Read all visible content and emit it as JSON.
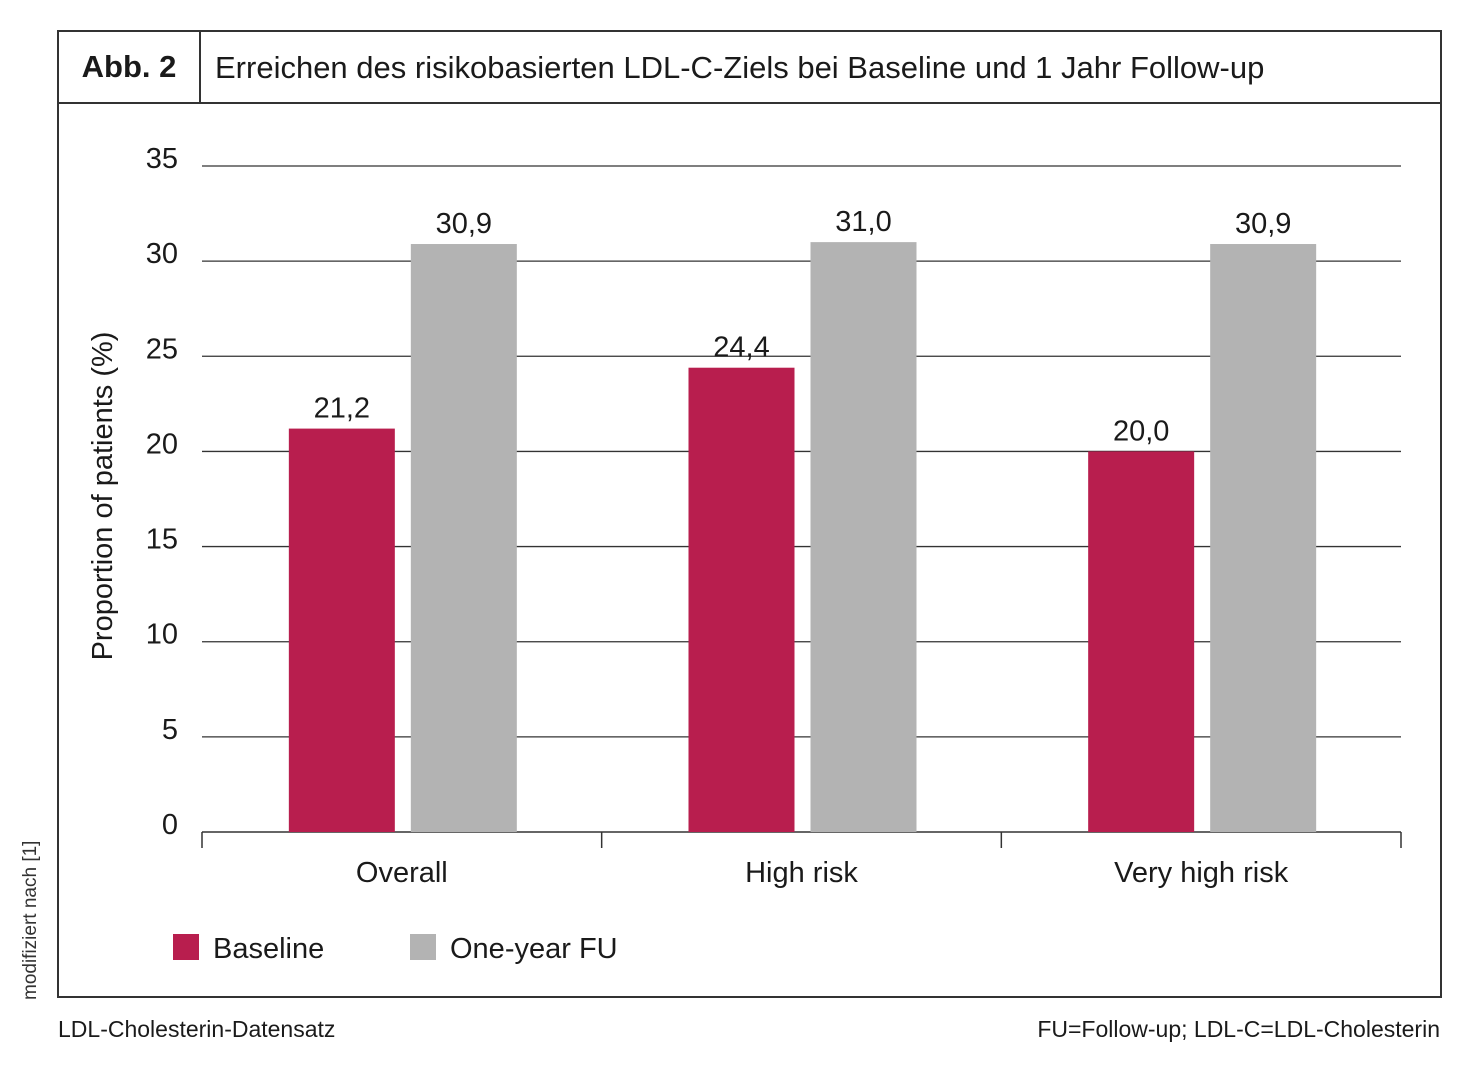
{
  "figure_label": "Abb. 2",
  "title": "Erreichen des risikobasierten LDL-C-Ziels bei Baseline und 1 Jahr Follow-up",
  "side_note": "modifiziert nach [1]",
  "footer_left": "LDL-Cholesterin-Datensatz",
  "footer_right": "FU=Follow-up; LDL-C=LDL-Cholesterin",
  "colors": {
    "baseline": "#B81E4E",
    "followup": "#B3B3B3"
  },
  "chart_data": {
    "type": "bar",
    "title": "Erreichen des risikobasierten LDL-C-Ziels bei Baseline und 1 Jahr Follow-up",
    "categories": [
      "Overall",
      "High risk",
      "Very high risk"
    ],
    "series": [
      {
        "name": "Baseline",
        "values": [
          21.2,
          24.4,
          20.0
        ],
        "labels": [
          "21,2",
          "24,4",
          "20,0"
        ]
      },
      {
        "name": "One-year FU",
        "values": [
          30.9,
          31.0,
          30.9
        ],
        "labels": [
          "30,9",
          "31,0",
          "30,9"
        ]
      }
    ],
    "xlabel": "",
    "ylabel": "Proportion of patients (%)",
    "ylim": [
      0,
      35
    ],
    "yticks": [
      "0",
      "5",
      "10",
      "15",
      "20",
      "25",
      "30",
      "35"
    ],
    "grid": true,
    "legend_position": "bottom-left"
  }
}
